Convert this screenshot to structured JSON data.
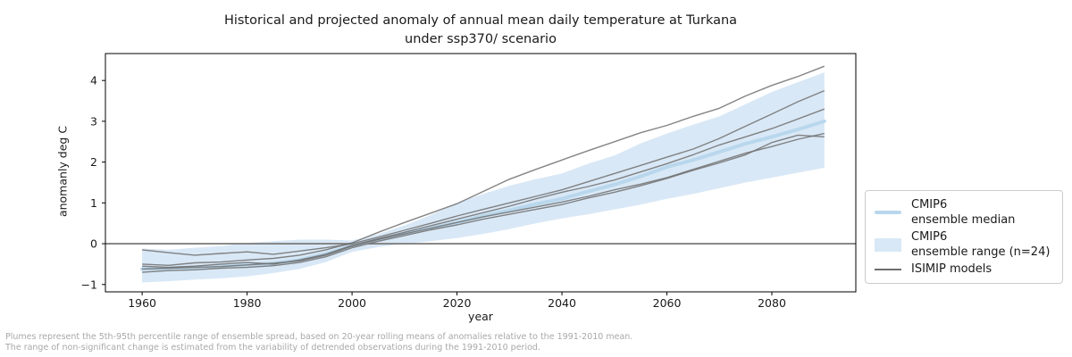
{
  "header": {
    "title_line1": "Historical and projected anomaly of annual mean daily temperature at Turkana",
    "title_line2": "under ssp370/ scenario"
  },
  "axes": {
    "xlabel": "year",
    "ylabel": "anomanly deg C"
  },
  "legend": {
    "items": [
      {
        "line1": "CMIP6",
        "line2": "ensemble median",
        "swatch": "median"
      },
      {
        "line1": "CMIP6",
        "line2": "ensemble range (n=24)",
        "swatch": "band"
      },
      {
        "line1": "ISIMIP models",
        "swatch": "isimip"
      }
    ]
  },
  "footnote": {
    "line1": "Plumes represent the 5th-95th percentile range of ensemble spread, based on 20-year rolling means of anomalies relative to the 1991-2010 mean.",
    "line2": "The range of non-significant change is estimated from the variability of detrended observations during the 1991-2010 period."
  },
  "colors": {
    "band": "#d9e8f6",
    "median": "#b9d7ec",
    "isimip": "#6e6e6e",
    "zero_line": "#808080",
    "spine": "#000000",
    "footnote": "#a8a8a8"
  },
  "chart_data": {
    "type": "line",
    "title": "Historical and projected anomaly of annual mean daily temperature at Turkana under ssp370/ scenario",
    "xlabel": "year",
    "ylabel": "anomanly deg C",
    "xlim": [
      1953,
      2096
    ],
    "ylim": [
      -1.18,
      4.66
    ],
    "x_ticks": [
      1960,
      1980,
      2000,
      2020,
      2040,
      2060,
      2080
    ],
    "y_ticks": [
      -1,
      0,
      1,
      2,
      3,
      4
    ],
    "grid": false,
    "legend_position": "outside right",
    "zero_reference_line": 0,
    "x": [
      1960,
      1965,
      1970,
      1975,
      1980,
      1985,
      1990,
      1995,
      2000,
      2005,
      2010,
      2015,
      2020,
      2025,
      2030,
      2035,
      2040,
      2045,
      2050,
      2055,
      2060,
      2065,
      2070,
      2075,
      2080,
      2085,
      2090
    ],
    "band": {
      "name": "CMIP6 ensemble range (n=24)",
      "upper": [
        -0.12,
        -0.15,
        -0.1,
        -0.06,
        0.02,
        0.06,
        0.1,
        0.1,
        0.08,
        0.24,
        0.45,
        0.7,
        1.0,
        1.22,
        1.42,
        1.58,
        1.72,
        1.96,
        2.16,
        2.46,
        2.7,
        2.92,
        3.12,
        3.42,
        3.72,
        3.96,
        4.2
      ],
      "lower": [
        -0.95,
        -0.92,
        -0.88,
        -0.85,
        -0.8,
        -0.72,
        -0.62,
        -0.45,
        -0.2,
        -0.08,
        0.0,
        0.06,
        0.14,
        0.24,
        0.36,
        0.5,
        0.62,
        0.72,
        0.84,
        0.96,
        1.1,
        1.22,
        1.36,
        1.5,
        1.62,
        1.74,
        1.86
      ]
    },
    "median": {
      "name": "CMIP6 ensemble median",
      "values": [
        -0.62,
        -0.6,
        -0.58,
        -0.55,
        -0.52,
        -0.48,
        -0.4,
        -0.25,
        -0.05,
        0.1,
        0.25,
        0.38,
        0.52,
        0.68,
        0.82,
        0.97,
        1.1,
        1.28,
        1.45,
        1.65,
        1.88,
        2.05,
        2.25,
        2.45,
        2.62,
        2.8,
        3.0
      ]
    },
    "series": [
      {
        "name": "ISIMIP model 1",
        "values": [
          -0.5,
          -0.53,
          -0.47,
          -0.45,
          -0.4,
          -0.36,
          -0.28,
          -0.15,
          0.02,
          0.28,
          0.52,
          0.75,
          0.98,
          1.28,
          1.58,
          1.82,
          2.05,
          2.28,
          2.5,
          2.72,
          2.9,
          3.12,
          3.32,
          3.62,
          3.88,
          4.1,
          4.35
        ]
      },
      {
        "name": "ISIMIP model 2",
        "values": [
          -0.15,
          -0.22,
          -0.28,
          -0.24,
          -0.2,
          -0.26,
          -0.18,
          -0.1,
          0.0,
          0.16,
          0.33,
          0.5,
          0.68,
          0.84,
          1.0,
          1.16,
          1.32,
          1.52,
          1.72,
          1.92,
          2.12,
          2.32,
          2.58,
          2.88,
          3.18,
          3.48,
          3.75
        ]
      },
      {
        "name": "ISIMIP model 3",
        "values": [
          -0.55,
          -0.58,
          -0.55,
          -0.5,
          -0.46,
          -0.5,
          -0.4,
          -0.26,
          -0.04,
          0.12,
          0.28,
          0.44,
          0.6,
          0.76,
          0.92,
          1.1,
          1.26,
          1.4,
          1.56,
          1.76,
          1.96,
          2.18,
          2.42,
          2.62,
          2.82,
          3.06,
          3.3
        ]
      },
      {
        "name": "ISIMIP model 4",
        "values": [
          -0.62,
          -0.6,
          -0.58,
          -0.56,
          -0.52,
          -0.48,
          -0.42,
          -0.28,
          -0.06,
          0.1,
          0.24,
          0.38,
          0.52,
          0.66,
          0.78,
          0.9,
          1.02,
          1.16,
          1.32,
          1.46,
          1.62,
          1.82,
          2.02,
          2.22,
          2.38,
          2.56,
          2.7
        ]
      },
      {
        "name": "ISIMIP model 5",
        "values": [
          -0.7,
          -0.66,
          -0.64,
          -0.6,
          -0.58,
          -0.54,
          -0.46,
          -0.32,
          -0.1,
          0.06,
          0.2,
          0.34,
          0.46,
          0.6,
          0.72,
          0.84,
          0.96,
          1.12,
          1.26,
          1.42,
          1.6,
          1.8,
          1.98,
          2.18,
          2.48,
          2.66,
          2.62
        ]
      }
    ]
  }
}
